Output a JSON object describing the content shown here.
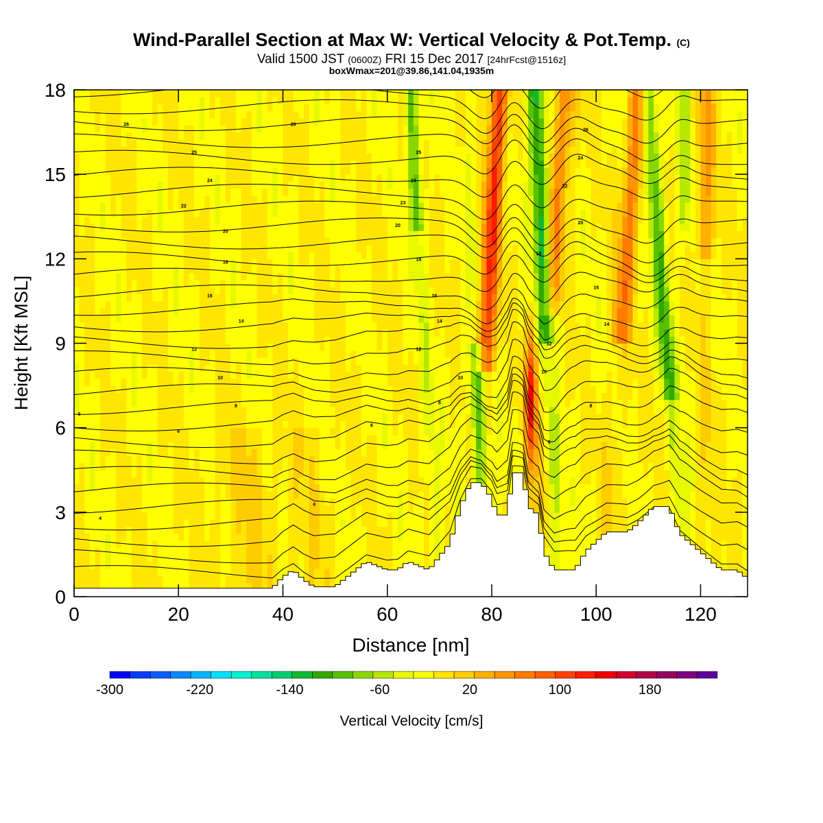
{
  "header": {
    "title": "Wind-Parallel Section at Max W: Vertical Velocity & Pot.Temp.",
    "copyright": "(C)",
    "valid_main": "Valid 1500 JST",
    "valid_utc": "(0600Z)",
    "valid_date": "FRI 15 Dec 2017",
    "forecast": "[24hrFcst@1516z]",
    "boxinfo": "boxWmax=201@39.86,141.04,1935m"
  },
  "chart_data": {
    "type": "contour-section",
    "xlabel": "Distance [nm]",
    "ylabel": "Height [Kft MSL]",
    "xlim": [
      0,
      129
    ],
    "ylim": [
      0,
      18
    ],
    "xticks": [
      0,
      20,
      40,
      60,
      80,
      100,
      120
    ],
    "yticks": [
      0,
      3,
      6,
      9,
      12,
      15,
      18
    ],
    "colorbar": {
      "label": "Vertical Velocity [cm/s]",
      "min": -300,
      "max": 240,
      "step": 20,
      "tick_values": [
        -300,
        -220,
        -140,
        -60,
        20,
        100,
        180
      ],
      "colors": [
        "#0000ff",
        "#0a3cff",
        "#0a5cff",
        "#0a88ff",
        "#00b4ff",
        "#00e0ff",
        "#00f0d0",
        "#00e0a0",
        "#00cc70",
        "#10b830",
        "#30a800",
        "#58c000",
        "#88d800",
        "#b8e800",
        "#e8f800",
        "#ffff00",
        "#ffe600",
        "#ffcc00",
        "#ffb000",
        "#ff9600",
        "#ff7c00",
        "#ff6000",
        "#ff4000",
        "#ff1c00",
        "#ee0000",
        "#d0002a",
        "#b00046",
        "#980062",
        "#800080",
        "#60009a"
      ]
    },
    "terrain": [
      {
        "x": 0,
        "z": 0.3
      },
      {
        "x": 10,
        "z": 0.3
      },
      {
        "x": 20,
        "z": 0.3
      },
      {
        "x": 30,
        "z": 0.3
      },
      {
        "x": 38,
        "z": 0.3
      },
      {
        "x": 40,
        "z": 0.7
      },
      {
        "x": 42,
        "z": 0.95
      },
      {
        "x": 44,
        "z": 0.6
      },
      {
        "x": 46,
        "z": 0.35
      },
      {
        "x": 50,
        "z": 0.35
      },
      {
        "x": 52,
        "z": 0.65
      },
      {
        "x": 56,
        "z": 1.25
      },
      {
        "x": 60,
        "z": 0.95
      },
      {
        "x": 62,
        "z": 0.95
      },
      {
        "x": 64,
        "z": 1.25
      },
      {
        "x": 68,
        "z": 0.95
      },
      {
        "x": 72,
        "z": 1.9
      },
      {
        "x": 74,
        "z": 3.2
      },
      {
        "x": 76,
        "z": 4.05
      },
      {
        "x": 78,
        "z": 4.05
      },
      {
        "x": 80,
        "z": 3.5
      },
      {
        "x": 81,
        "z": 2.9
      },
      {
        "x": 83,
        "z": 2.9
      },
      {
        "x": 84,
        "z": 4.4
      },
      {
        "x": 86,
        "z": 4.4
      },
      {
        "x": 87,
        "z": 3.2
      },
      {
        "x": 89,
        "z": 2.9
      },
      {
        "x": 90,
        "z": 1.6
      },
      {
        "x": 92,
        "z": 0.95
      },
      {
        "x": 96,
        "z": 0.95
      },
      {
        "x": 98,
        "z": 1.6
      },
      {
        "x": 102,
        "z": 2.3
      },
      {
        "x": 106,
        "z": 2.3
      },
      {
        "x": 108,
        "z": 2.6
      },
      {
        "x": 111,
        "z": 3.2
      },
      {
        "x": 114,
        "z": 3.2
      },
      {
        "x": 116,
        "z": 2.25
      },
      {
        "x": 120,
        "z": 1.6
      },
      {
        "x": 124,
        "z": 0.95
      },
      {
        "x": 127,
        "z": 0.95
      },
      {
        "x": 129,
        "z": 0.65
      }
    ],
    "theta_contour_labels": [
      {
        "x": 10,
        "z": 16.8,
        "v": "26"
      },
      {
        "x": 42,
        "z": 16.8,
        "v": "26"
      },
      {
        "x": 23,
        "z": 15.8,
        "v": "25"
      },
      {
        "x": 26,
        "z": 14.8,
        "v": "24"
      },
      {
        "x": 21,
        "z": 13.9,
        "v": "22"
      },
      {
        "x": 29,
        "z": 13.0,
        "v": "20"
      },
      {
        "x": 29,
        "z": 11.9,
        "v": "18"
      },
      {
        "x": 26,
        "z": 10.7,
        "v": "16"
      },
      {
        "x": 32,
        "z": 9.8,
        "v": "14"
      },
      {
        "x": 23,
        "z": 8.8,
        "v": "12"
      },
      {
        "x": 28,
        "z": 7.8,
        "v": "10"
      },
      {
        "x": 31,
        "z": 6.8,
        "v": "8"
      },
      {
        "x": 1,
        "z": 6.5,
        "v": "6"
      },
      {
        "x": 20,
        "z": 5.9,
        "v": "6"
      },
      {
        "x": 57,
        "z": 6.1,
        "v": "6"
      },
      {
        "x": 5,
        "z": 2.8,
        "v": "4"
      },
      {
        "x": 46,
        "z": 3.3,
        "v": "4"
      },
      {
        "x": 66,
        "z": 15.8,
        "v": "25"
      },
      {
        "x": 65,
        "z": 14.8,
        "v": "24"
      },
      {
        "x": 63,
        "z": 14.0,
        "v": "23"
      },
      {
        "x": 62,
        "z": 13.2,
        "v": "20"
      },
      {
        "x": 66,
        "z": 12.0,
        "v": "18"
      },
      {
        "x": 69,
        "z": 10.7,
        "v": "16"
      },
      {
        "x": 70,
        "z": 9.8,
        "v": "14"
      },
      {
        "x": 66,
        "z": 8.8,
        "v": "12"
      },
      {
        "x": 74,
        "z": 7.8,
        "v": "10"
      },
      {
        "x": 70,
        "z": 6.9,
        "v": "8"
      },
      {
        "x": 98,
        "z": 16.6,
        "v": "26"
      },
      {
        "x": 97,
        "z": 15.6,
        "v": "24"
      },
      {
        "x": 94,
        "z": 14.6,
        "v": "22"
      },
      {
        "x": 97,
        "z": 13.3,
        "v": "20"
      },
      {
        "x": 89,
        "z": 12.2,
        "v": "18"
      },
      {
        "x": 100,
        "z": 11.0,
        "v": "16"
      },
      {
        "x": 102,
        "z": 9.7,
        "v": "14"
      },
      {
        "x": 91,
        "z": 9.0,
        "v": "12"
      },
      {
        "x": 90,
        "z": 8.0,
        "v": "10"
      },
      {
        "x": 99,
        "z": 6.8,
        "v": "8"
      },
      {
        "x": 91,
        "z": 5.5,
        "v": "6"
      }
    ]
  }
}
